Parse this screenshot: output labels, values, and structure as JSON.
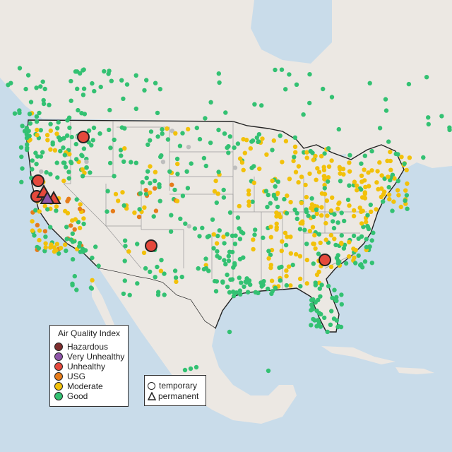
{
  "legend": {
    "title": "Air Quality Index",
    "categories": [
      {
        "label": "Hazardous",
        "color": "#7e2f2f"
      },
      {
        "label": "Very Unhealthy",
        "color": "#8e55a8"
      },
      {
        "label": "Unhealthy",
        "color": "#e5493c"
      },
      {
        "label": "USG",
        "color": "#e67c1a"
      },
      {
        "label": "Moderate",
        "color": "#f2c10a"
      },
      {
        "label": "Good",
        "color": "#33c172"
      }
    ]
  },
  "type_legend": {
    "temporary": "temporary",
    "permanent": "permanent"
  },
  "colors": {
    "water": "#c9dcea",
    "land": "#ece8e3",
    "nodata": "#bdbdbd"
  }
}
